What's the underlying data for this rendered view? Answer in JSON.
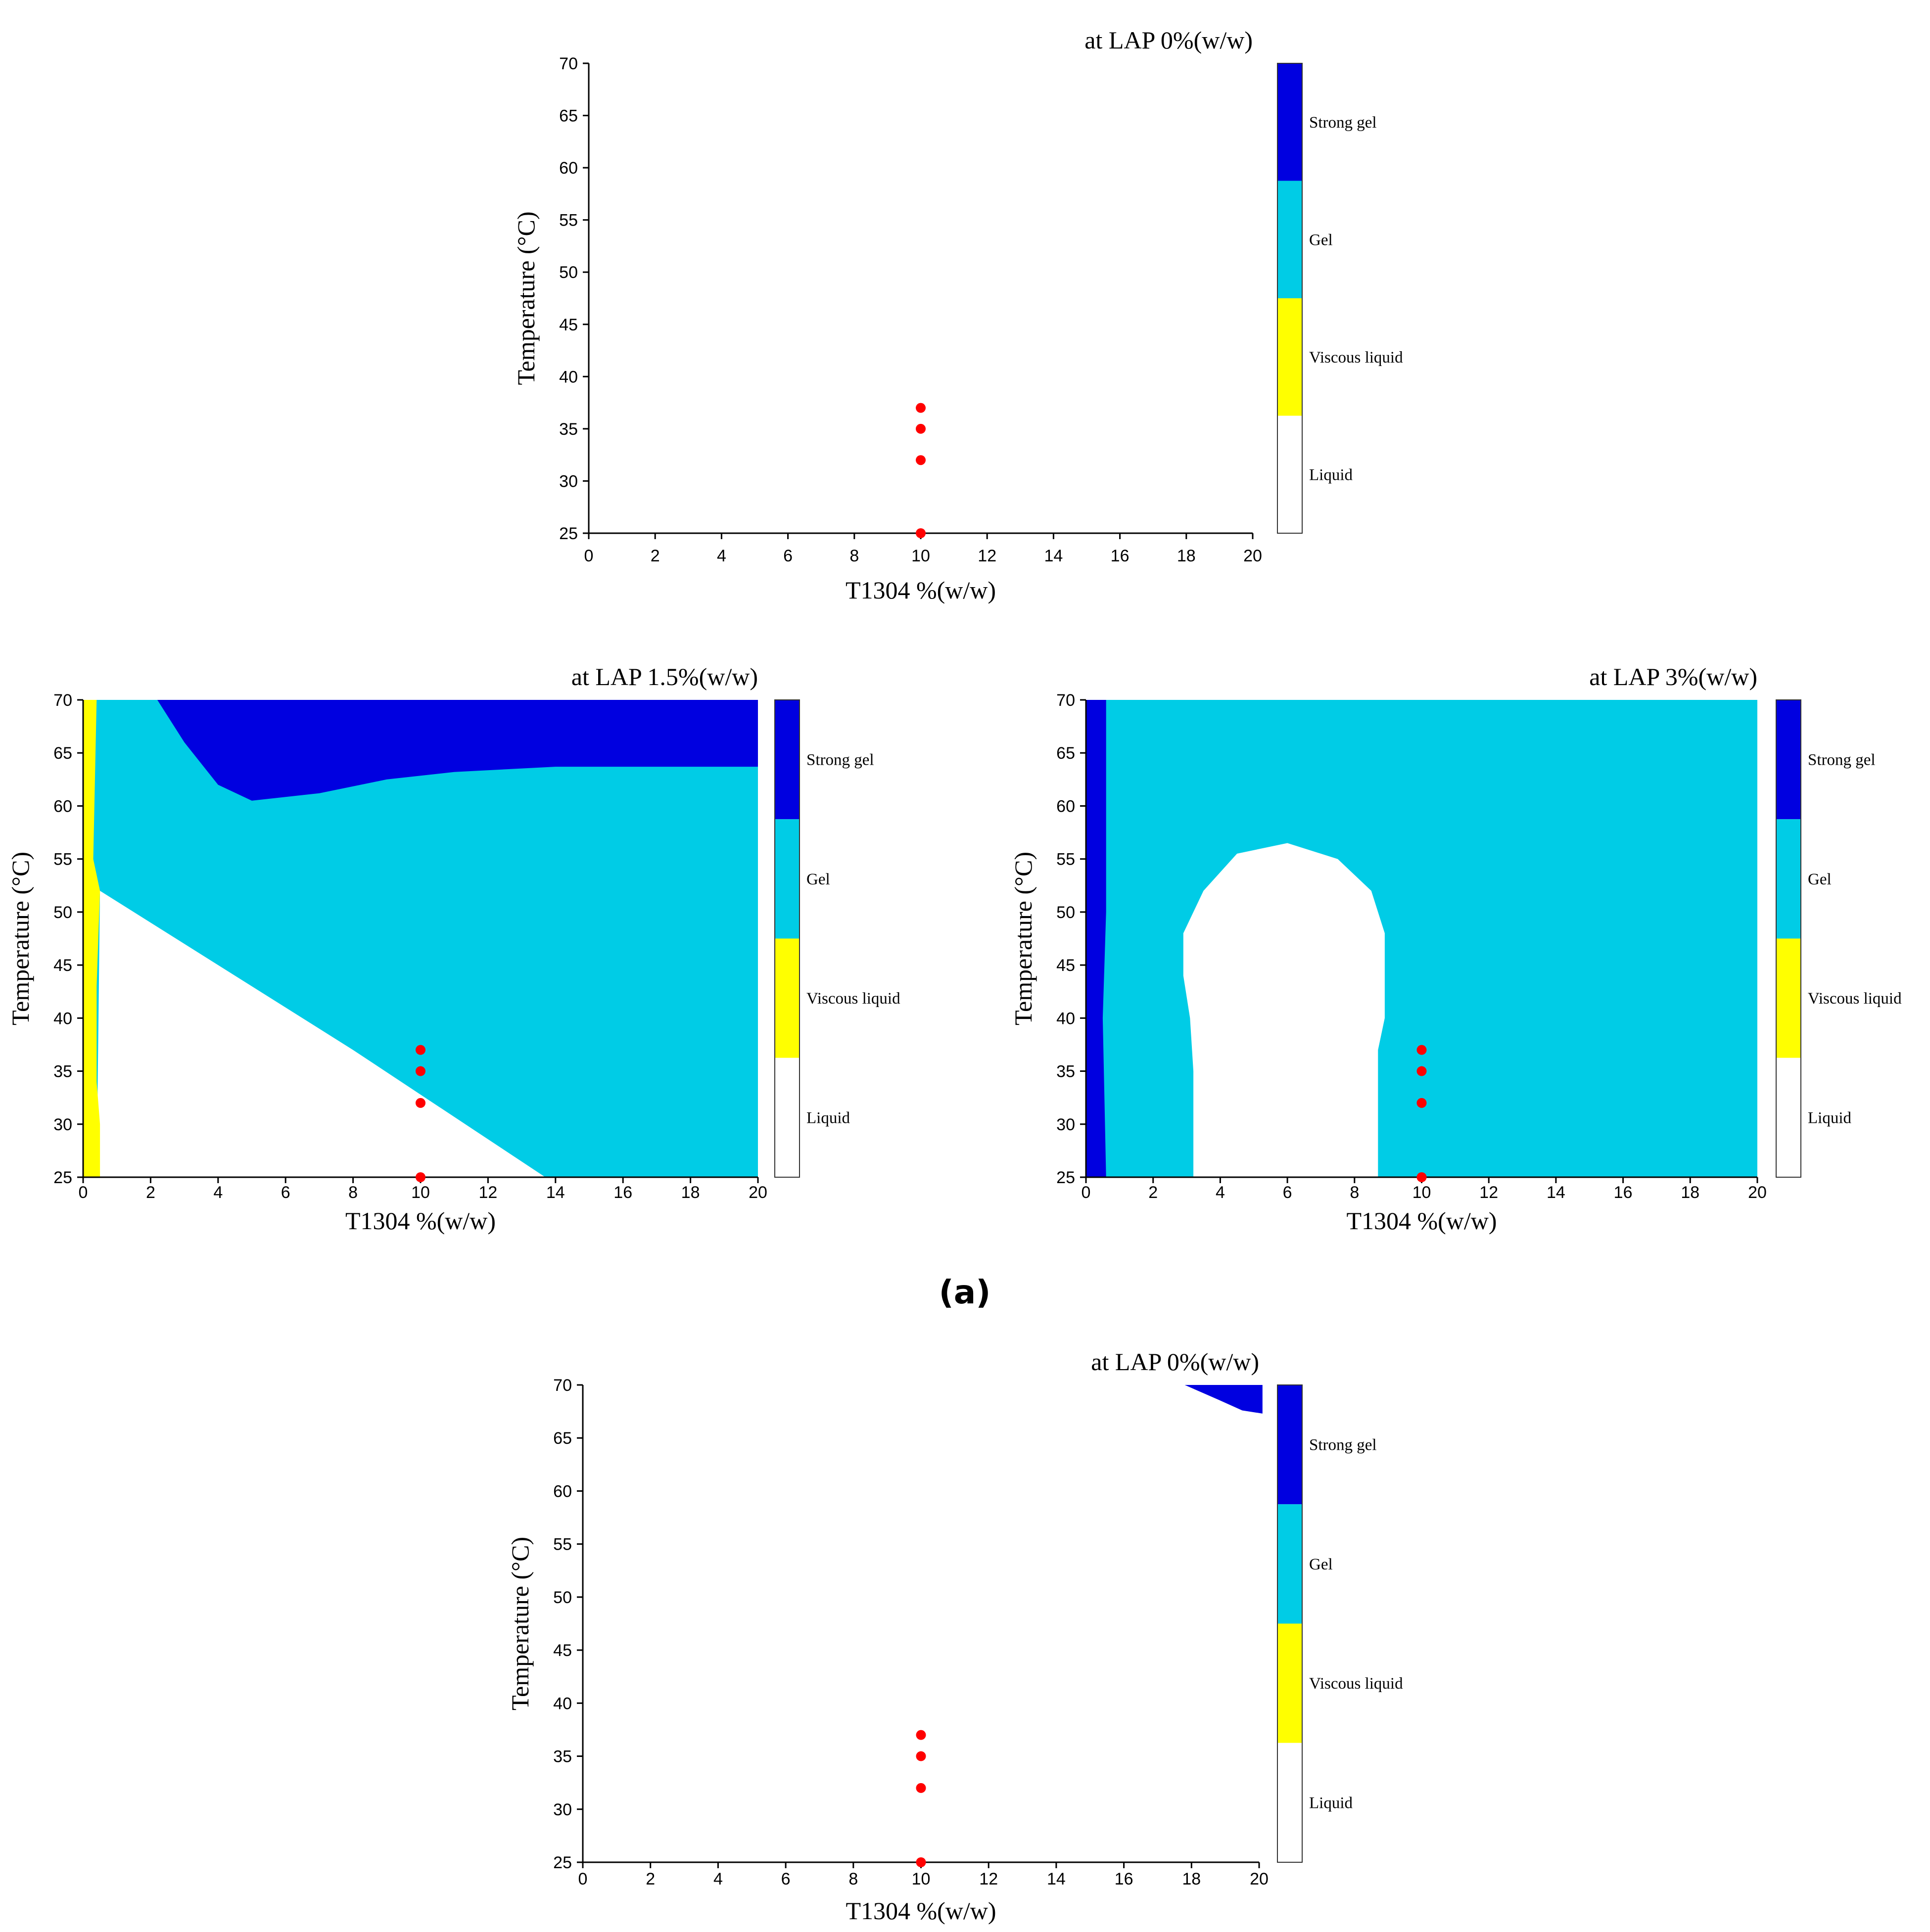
{
  "figure_label": "(a)",
  "colors": {
    "strong_gel": "#0000e0",
    "gel": "#00cce6",
    "viscous_liquid": "#ffff00",
    "liquid": "#ffffff",
    "marker": "#ff0000"
  },
  "chart_data": [
    {
      "type": "heatmap",
      "title": "at LAP 0%(w/w)",
      "xlabel": "T1304 %(w/w)",
      "ylabel": "Temperature (°C)",
      "xlim": [
        0,
        20
      ],
      "ylim": [
        25,
        70
      ],
      "xticks": [
        0,
        2,
        4,
        6,
        8,
        10,
        12,
        14,
        16,
        18,
        20
      ],
      "yticks": [
        25,
        30,
        35,
        40,
        45,
        50,
        55,
        60,
        65,
        70
      ],
      "legend": [
        "Strong gel",
        "Gel",
        "Viscous liquid",
        "Liquid"
      ],
      "legend_position": "right",
      "regions": [],
      "points": [
        {
          "x": 10,
          "y": 25
        },
        {
          "x": 10,
          "y": 32
        },
        {
          "x": 10,
          "y": 35
        },
        {
          "x": 10,
          "y": 37
        }
      ]
    },
    {
      "type": "heatmap",
      "title": "at LAP 1.5%(w/w)",
      "xlabel": "T1304 %(w/w)",
      "ylabel": "Temperature (°C)",
      "xlim": [
        0,
        20
      ],
      "ylim": [
        25,
        70
      ],
      "xticks": [
        0,
        2,
        4,
        6,
        8,
        10,
        12,
        14,
        16,
        18,
        20
      ],
      "yticks": [
        25,
        30,
        35,
        40,
        45,
        50,
        55,
        60,
        65,
        70
      ],
      "legend": [
        "Strong gel",
        "Gel",
        "Viscous liquid",
        "Liquid"
      ],
      "legend_position": "right",
      "regions": [
        {
          "phase": "gel",
          "polygon": [
            [
              0,
              25
            ],
            [
              20,
              25
            ],
            [
              20,
              70
            ],
            [
              0,
              70
            ]
          ]
        },
        {
          "phase": "liquid",
          "polygon": [
            [
              0.4,
              25
            ],
            [
              13.7,
              25
            ],
            [
              8,
              37
            ],
            [
              4,
              45
            ],
            [
              0.5,
              52
            ]
          ]
        },
        {
          "phase": "strong_gel",
          "polygon": [
            [
              2.2,
              70
            ],
            [
              20,
              70
            ],
            [
              20,
              63.7
            ],
            [
              14,
              63.7
            ],
            [
              11,
              63.2
            ],
            [
              9,
              62.5
            ],
            [
              7,
              61.2
            ],
            [
              5,
              60.5
            ],
            [
              4,
              62
            ],
            [
              3,
              66
            ]
          ]
        },
        {
          "phase": "viscous_liquid",
          "polygon": [
            [
              0,
              25
            ],
            [
              0.5,
              25
            ],
            [
              0.5,
              30
            ],
            [
              0.4,
              34
            ],
            [
              0.4,
              43
            ],
            [
              0.5,
              52
            ],
            [
              0.3,
              55
            ],
            [
              0.4,
              70
            ],
            [
              0,
              70
            ]
          ]
        }
      ],
      "points": [
        {
          "x": 10,
          "y": 25
        },
        {
          "x": 10,
          "y": 32
        },
        {
          "x": 10,
          "y": 35
        },
        {
          "x": 10,
          "y": 37
        }
      ]
    },
    {
      "type": "heatmap",
      "title": "at LAP 3%(w/w)",
      "xlabel": "T1304 %(w/w)",
      "ylabel": "Temperature (°C)",
      "xlim": [
        0,
        20
      ],
      "ylim": [
        25,
        70
      ],
      "xticks": [
        0,
        2,
        4,
        6,
        8,
        10,
        12,
        14,
        16,
        18,
        20
      ],
      "yticks": [
        25,
        30,
        35,
        40,
        45,
        50,
        55,
        60,
        65,
        70
      ],
      "legend": [
        "Strong gel",
        "Gel",
        "Viscous liquid",
        "Liquid"
      ],
      "legend_position": "right",
      "regions": [
        {
          "phase": "gel",
          "polygon": [
            [
              0,
              25
            ],
            [
              20,
              25
            ],
            [
              20,
              70
            ],
            [
              0,
              70
            ]
          ]
        },
        {
          "phase": "strong_gel",
          "polygon": [
            [
              0,
              25
            ],
            [
              0.6,
              25
            ],
            [
              0.5,
              40
            ],
            [
              0.6,
              50
            ],
            [
              0.6,
              70
            ],
            [
              0,
              70
            ]
          ]
        },
        {
          "phase": "liquid",
          "polygon": [
            [
              3.2,
              25
            ],
            [
              8.7,
              25
            ],
            [
              8.7,
              37
            ],
            [
              8.9,
              40
            ],
            [
              8.9,
              48
            ],
            [
              8.5,
              52
            ],
            [
              7.5,
              55
            ],
            [
              6,
              56.5
            ],
            [
              4.5,
              55.5
            ],
            [
              3.5,
              52
            ],
            [
              2.9,
              48
            ],
            [
              2.9,
              44
            ],
            [
              3.1,
              40
            ],
            [
              3.2,
              35
            ]
          ]
        }
      ],
      "points": [
        {
          "x": 10,
          "y": 25
        },
        {
          "x": 10,
          "y": 32
        },
        {
          "x": 10,
          "y": 35
        },
        {
          "x": 10,
          "y": 37
        }
      ]
    },
    {
      "type": "heatmap",
      "title": "at LAP 0%(w/w)",
      "xlabel": "T1304 %(w/w)",
      "ylabel": "Temperature (°C)",
      "xlim": [
        0,
        20
      ],
      "ylim": [
        25,
        70
      ],
      "xticks": [
        0,
        2,
        4,
        6,
        8,
        10,
        12,
        14,
        16,
        18,
        20
      ],
      "yticks": [
        25,
        30,
        35,
        40,
        45,
        50,
        55,
        60,
        65,
        70
      ],
      "legend": [
        "Strong gel",
        "Gel",
        "Viscous liquid",
        "Liquid"
      ],
      "legend_position": "right",
      "regions": [
        {
          "phase": "strong_gel",
          "polygon": [
            [
              17.8,
              70
            ],
            [
              20.1,
              70
            ],
            [
              20.1,
              67.3
            ],
            [
              19.5,
              67.6
            ],
            [
              18.8,
              68.6
            ]
          ]
        }
      ],
      "points": [
        {
          "x": 10,
          "y": 25
        },
        {
          "x": 10,
          "y": 32
        },
        {
          "x": 10,
          "y": 35
        },
        {
          "x": 10,
          "y": 37
        }
      ]
    }
  ]
}
